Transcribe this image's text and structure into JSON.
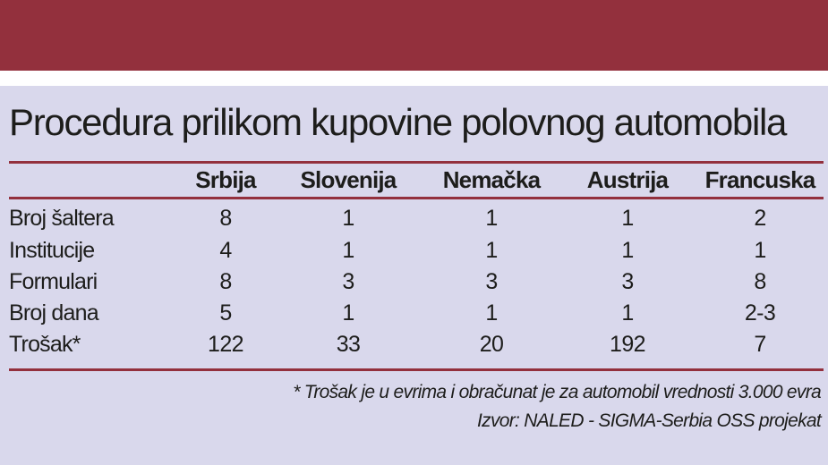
{
  "colors": {
    "accent": "#93303d",
    "panel": "#d9d8ec",
    "text": "#1d1d1b"
  },
  "chart_data": {
    "type": "table",
    "title": "Procedura prilikom kupovine polovnog automobila",
    "columns": [
      "Srbija",
      "Slovenija",
      "Nemačka",
      "Austrija",
      "Francuska"
    ],
    "rows": [
      {
        "label": "Broj šaltera",
        "values": [
          "8",
          "1",
          "1",
          "1",
          "2"
        ]
      },
      {
        "label": "Institucije",
        "values": [
          "4",
          "1",
          "1",
          "1",
          "1"
        ]
      },
      {
        "label": "Formulari",
        "values": [
          "8",
          "3",
          "3",
          "3",
          "8"
        ]
      },
      {
        "label": "Broj dana",
        "values": [
          "5",
          "1",
          "1",
          "1",
          "2-3"
        ]
      },
      {
        "label": "Trošak*",
        "values": [
          "122",
          "33",
          "20",
          "192",
          "7"
        ]
      }
    ],
    "footnote": "* Trošak je u evrima i obračunat je za automobil vrednosti 3.000 evra",
    "source": "Izvor: NALED - SIGMA-Serbia OSS projekat"
  }
}
